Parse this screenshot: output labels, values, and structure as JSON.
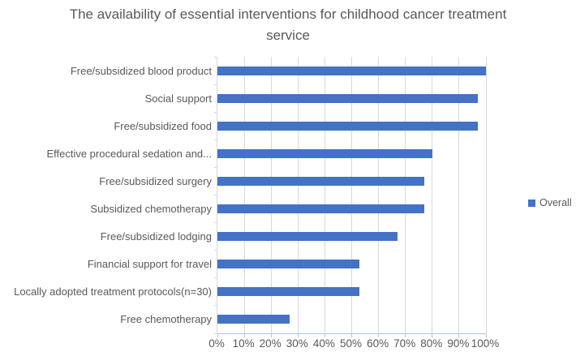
{
  "title": "The availability of essential interventions for childhood cancer treatment service",
  "legend": {
    "label": "Overall"
  },
  "colors": {
    "bar": "#4472c4",
    "grid": "#d9d9d9",
    "category_axis": "#d9d9d9",
    "value_axis": "#aec1e4",
    "text": "#595959",
    "title": "#595959"
  },
  "chart_data": {
    "type": "bar",
    "orientation": "horizontal",
    "title": "The availability of essential interventions for childhood cancer treatment service",
    "categories": [
      "Free/subsidized blood product",
      "Social support",
      "Free/subsidized food",
      "Effective procedural sedation and...",
      "Free/subsidized surgery",
      "Subsidized chemotherapy",
      "Free/subsidized lodging",
      "Financial support for travel",
      "Locally adopted treatment protocols(n=30)",
      "Free chemotherapy"
    ],
    "series": [
      {
        "name": "Overall",
        "values": [
          100,
          97,
          97,
          80,
          77,
          77,
          67,
          53,
          53,
          27
        ]
      }
    ],
    "xlabel": "",
    "ylabel": "",
    "xlim": [
      0,
      100
    ],
    "x_tick_labels": [
      "0%",
      "10%",
      "20%",
      "30%",
      "40%",
      "50%",
      "60%",
      "70%",
      "80%",
      "90%",
      "100%"
    ],
    "grid": true,
    "legend_position": "right"
  }
}
